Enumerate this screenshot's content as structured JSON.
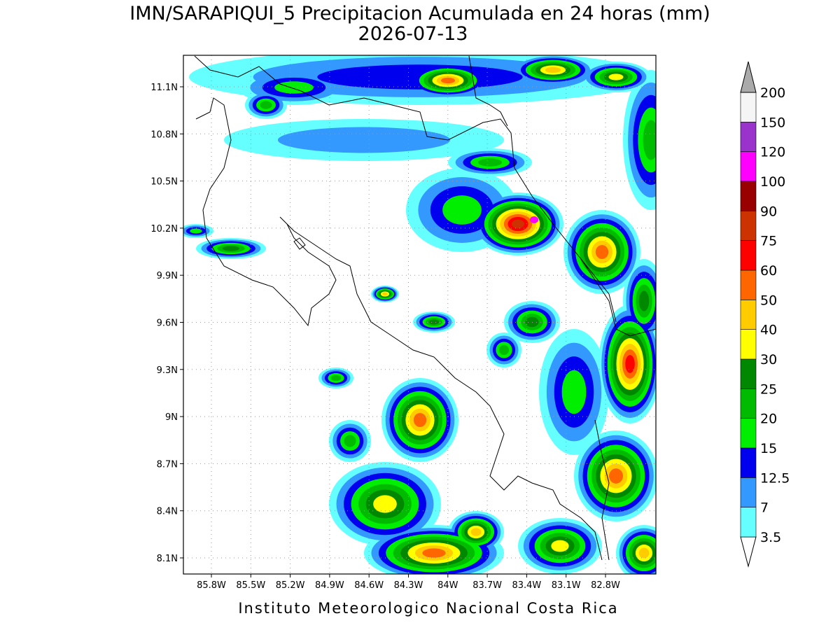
{
  "header": {
    "title": "IMN/SARAPIQUI_5 Precipitacion Acumulada en 24 horas (mm)",
    "subtitle": "2026-07-13"
  },
  "map": {
    "x_labels": [
      "85.8W",
      "85.5W",
      "85.2W",
      "84.9W",
      "84.6W",
      "84.3W",
      "84W",
      "83.7W",
      "83.4W",
      "83.1W",
      "82.8W"
    ],
    "y_labels": [
      "11.1N",
      "10.8N",
      "10.5N",
      "10.2N",
      "9.9N",
      "9.6N",
      "9.3N",
      "9N",
      "8.7N",
      "8.4N",
      "8.1N"
    ]
  },
  "legend": {
    "levels": [
      3.5,
      7,
      12.5,
      15,
      20,
      25,
      30,
      40,
      50,
      60,
      75,
      90,
      100,
      120,
      150,
      200
    ],
    "colors": [
      "#66ffff",
      "#3399ff",
      "#0000ee",
      "#00ee00",
      "#00bb00",
      "#008800",
      "#ffff00",
      "#ffcc00",
      "#ff6600",
      "#ff0000",
      "#cc3300",
      "#990000",
      "#ff00ff",
      "#9933cc",
      "#f5f5f5"
    ],
    "under_color": "#ffffff",
    "over_color": "#aaaaaa"
  },
  "footer": "Instituto Meteorologico Nacional Costa Rica"
}
